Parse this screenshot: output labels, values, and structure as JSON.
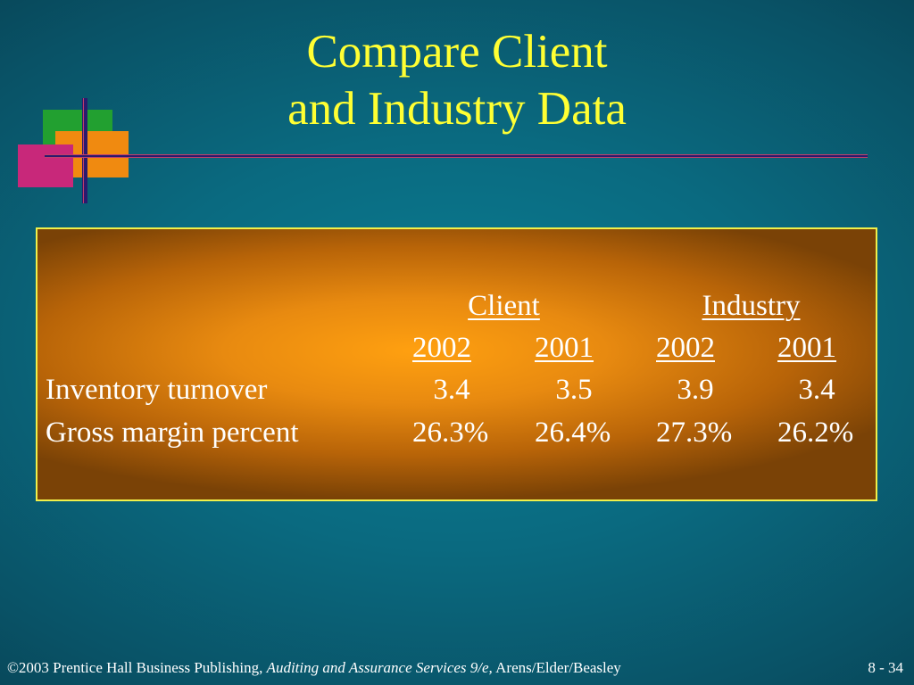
{
  "slide": {
    "title_line1": "Compare Client",
    "title_line2": "and Industry Data"
  },
  "table": {
    "group_headers": [
      "Client",
      "Industry"
    ],
    "year_headers": [
      "2002",
      "2001",
      "2002",
      "2001"
    ],
    "rows": [
      {
        "label": "Inventory turnover",
        "values": [
          "3.4",
          "3.5",
          "3.9",
          "3.4"
        ]
      },
      {
        "label": "Gross margin percent",
        "values": [
          "26.3%",
          "26.4%",
          "27.3%",
          "26.2%"
        ]
      }
    ]
  },
  "footer": {
    "copyright": "©2003 Prentice Hall Business Publishing, ",
    "book_title": "Auditing and Assurance Services 9/e,",
    "authors": " Arens/Elder/Beasley",
    "slide_number": "8 - 34"
  },
  "colors": {
    "title": "#ffff33",
    "background": "#0a6a80",
    "table_fill": "#ffa010",
    "table_border": "#f0f04a"
  }
}
